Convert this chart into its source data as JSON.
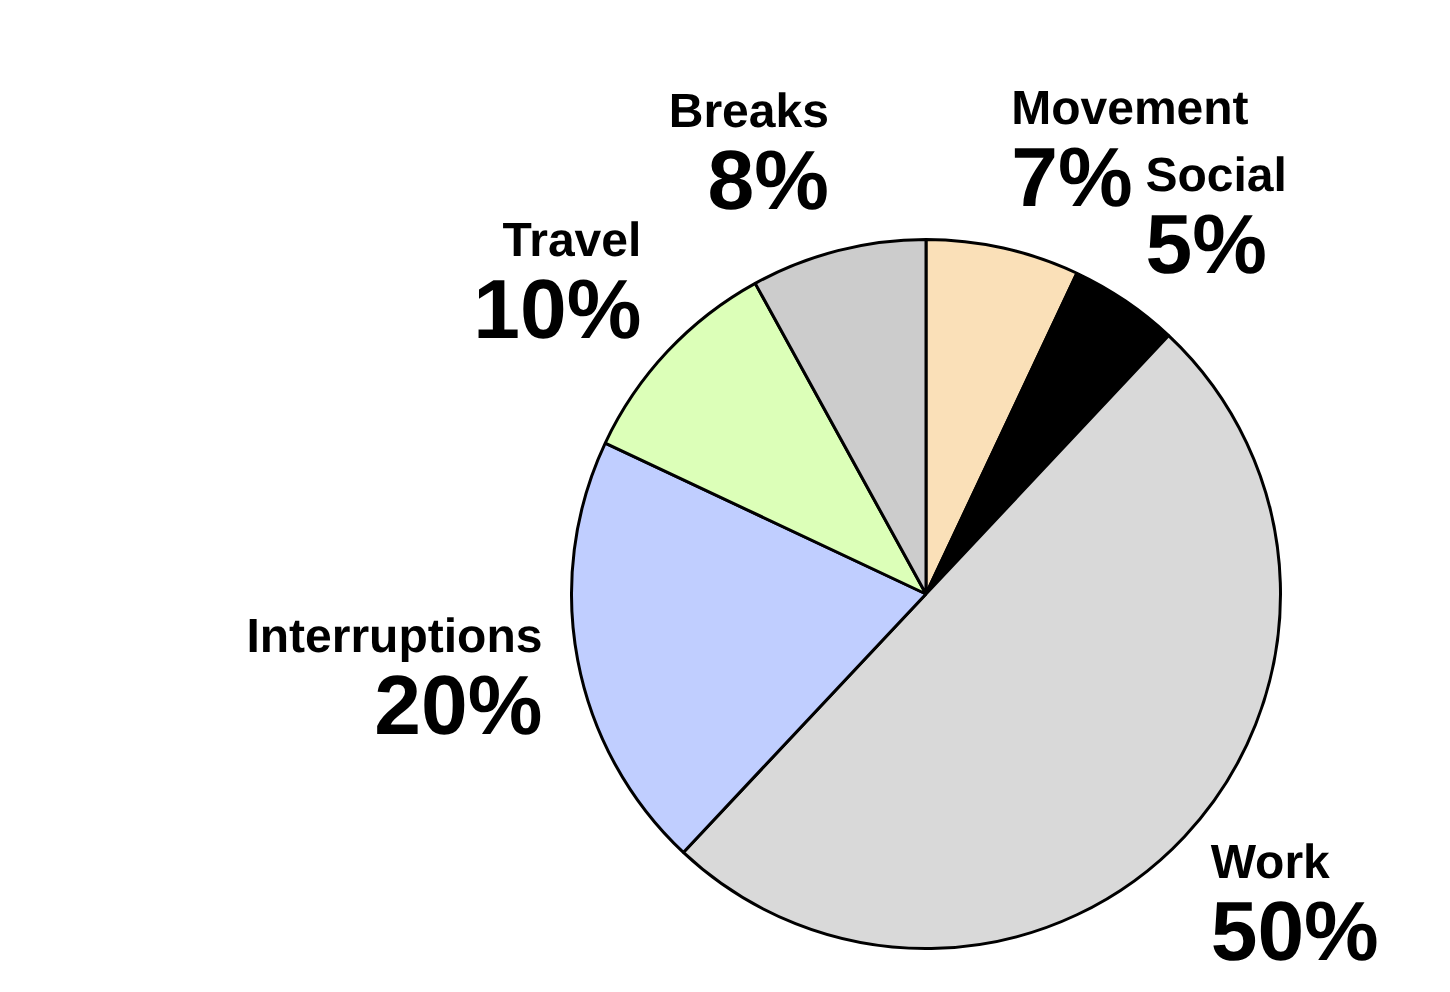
{
  "chart_data": {
    "type": "pie",
    "categories": [
      "Movement",
      "Social",
      "Work",
      "Interruptions",
      "Travel",
      "Breaks"
    ],
    "values": [
      7,
      5,
      50,
      20,
      10,
      8
    ],
    "value_labels": [
      "7%",
      "5%",
      "50%",
      "20%",
      "10%",
      "8%"
    ],
    "colors": [
      "#fae0b8",
      "#000000",
      "#d9d9d9",
      "#c0ceff",
      "#dcffb8",
      "#cccccc"
    ],
    "legend": false
  }
}
